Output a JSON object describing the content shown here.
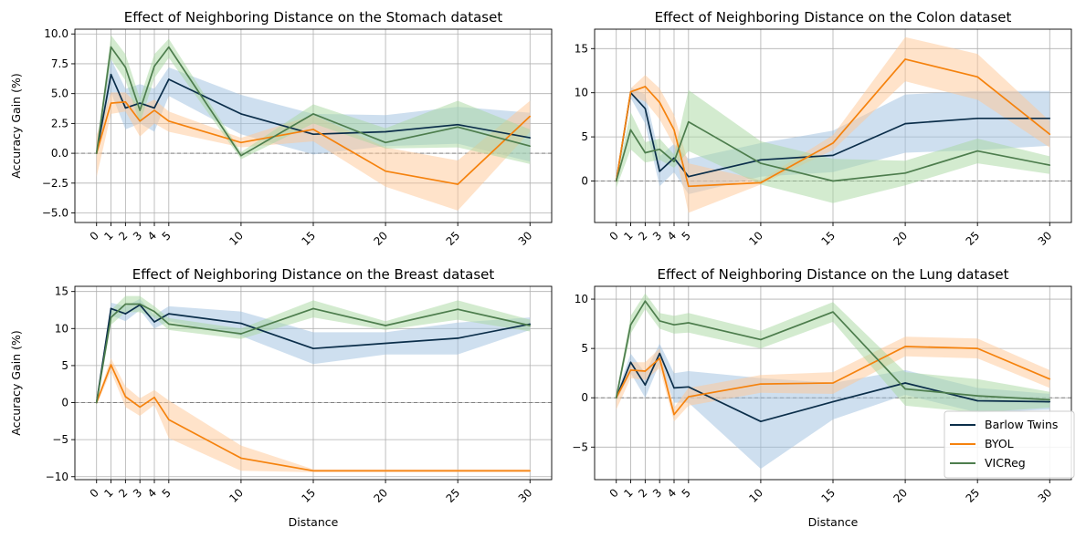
{
  "figure": {
    "legend_title": "",
    "legend_location": "lower right of Lung panel"
  },
  "chart_data": [
    {
      "type": "line",
      "title": "Effect of Neighboring Distance on the Stomach dataset",
      "xlabel": "",
      "ylabel": "Accuracy Gain (%)",
      "xlim": [
        -1.5,
        31.5
      ],
      "ylim": [
        -5.8,
        10.4
      ],
      "xticks": [
        0,
        1,
        2,
        3,
        4,
        5,
        10,
        15,
        20,
        25,
        30
      ],
      "yticks": [
        -5.0,
        -2.5,
        0.0,
        2.5,
        5.0,
        7.5,
        10.0
      ],
      "ytick_labels": [
        "−5.0",
        "−2.5",
        "0.0",
        "2.5",
        "5.0",
        "7.5",
        "10.0"
      ],
      "x": [
        0,
        1,
        2,
        3,
        4,
        5,
        10,
        15,
        20,
        25,
        30
      ],
      "series": [
        {
          "name": "Barlow Twins",
          "values": [
            0,
            6.6,
            3.8,
            4.2,
            3.8,
            6.2,
            3.3,
            1.6,
            1.8,
            2.4,
            1.3
          ],
          "lower": [
            -0.3,
            5.1,
            2.0,
            2.5,
            1.8,
            4.8,
            1.6,
            -0.1,
            0.6,
            0.8,
            -0.7
          ],
          "upper": [
            0.3,
            7.9,
            5.4,
            5.8,
            5.4,
            7.2,
            4.9,
            3.3,
            3.2,
            3.9,
            3.4
          ]
        },
        {
          "name": "BYOL",
          "values": [
            0,
            4.2,
            4.3,
            2.7,
            3.6,
            2.7,
            0.9,
            2.0,
            -1.5,
            -2.6,
            3.1
          ],
          "lower": [
            -2.0,
            3.3,
            3.5,
            1.4,
            2.5,
            1.8,
            0.5,
            1.0,
            -2.8,
            -4.8,
            1.8
          ],
          "upper": [
            1.5,
            5.1,
            5.1,
            3.9,
            4.5,
            3.5,
            1.3,
            3.2,
            0.5,
            -0.6,
            4.4
          ]
        },
        {
          "name": "VICReg",
          "values": [
            0,
            8.9,
            7.2,
            3.6,
            7.3,
            8.9,
            -0.2,
            3.3,
            0.9,
            2.2,
            0.6
          ],
          "lower": [
            -0.3,
            7.9,
            6.1,
            2.5,
            6.3,
            8.0,
            -0.5,
            2.5,
            0.4,
            0.5,
            -0.9
          ],
          "upper": [
            0.3,
            9.9,
            8.3,
            4.6,
            8.3,
            9.6,
            0.1,
            4.1,
            2.1,
            4.4,
            2.0
          ]
        }
      ]
    },
    {
      "type": "line",
      "title": "Effect of Neighboring Distance on the Colon dataset",
      "xlabel": "",
      "ylabel": "",
      "xlim": [
        -1.5,
        31.5
      ],
      "ylim": [
        -4.7,
        17.2
      ],
      "xticks": [
        0,
        1,
        2,
        3,
        4,
        5,
        10,
        15,
        20,
        25,
        30
      ],
      "yticks": [
        0,
        5,
        10,
        15
      ],
      "ytick_labels": [
        "0",
        "5",
        "10",
        "15"
      ],
      "x": [
        0,
        1,
        2,
        3,
        4,
        5,
        10,
        15,
        20,
        25,
        30
      ],
      "series": [
        {
          "name": "Barlow Twins",
          "values": [
            0,
            10.0,
            8.2,
            1.1,
            2.6,
            0.5,
            2.4,
            2.9,
            6.5,
            7.1,
            7.1
          ],
          "lower": [
            -0.3,
            9.4,
            6.5,
            -0.6,
            1.0,
            -1.5,
            0.5,
            1.0,
            3.2,
            3.5,
            4.0
          ],
          "upper": [
            0.3,
            10.6,
            9.8,
            2.8,
            4.2,
            2.5,
            4.3,
            5.7,
            9.8,
            10.2,
            10.2
          ]
        },
        {
          "name": "BYOL",
          "values": [
            0,
            10.1,
            10.7,
            8.9,
            5.8,
            -0.6,
            -0.2,
            4.3,
            13.8,
            11.8,
            5.3
          ],
          "lower": [
            -0.3,
            9.7,
            9.0,
            7.0,
            4.0,
            -3.6,
            -0.4,
            3.5,
            11.3,
            9.2,
            3.8
          ],
          "upper": [
            0.3,
            10.5,
            12.0,
            10.5,
            7.5,
            2.0,
            0.1,
            5.2,
            16.3,
            14.4,
            6.8
          ]
        },
        {
          "name": "VICReg",
          "values": [
            0,
            5.8,
            3.2,
            3.6,
            2.2,
            6.7,
            2.0,
            0.0,
            0.9,
            3.4,
            1.8
          ],
          "lower": [
            -0.8,
            3.6,
            2.1,
            2.4,
            1.5,
            3.4,
            -0.4,
            -2.5,
            -0.5,
            2.0,
            0.8
          ],
          "upper": [
            0.3,
            7.8,
            4.4,
            4.8,
            3.0,
            10.3,
            4.5,
            2.5,
            2.3,
            4.8,
            2.8
          ]
        }
      ]
    },
    {
      "type": "line",
      "title": "Effect of Neighboring Distance on the Breast dataset",
      "xlabel": "Distance",
      "ylabel": "Accuracy Gain (%)",
      "xlim": [
        -1.5,
        31.5
      ],
      "ylim": [
        -10.4,
        15.7
      ],
      "xticks": [
        0,
        1,
        2,
        3,
        4,
        5,
        10,
        15,
        20,
        25,
        30
      ],
      "yticks": [
        -10,
        -5,
        0,
        5,
        10,
        15
      ],
      "ytick_labels": [
        "−10",
        "−5",
        "0",
        "5",
        "10",
        "15"
      ],
      "x": [
        0,
        1,
        2,
        3,
        4,
        5,
        10,
        15,
        20,
        25,
        30
      ],
      "series": [
        {
          "name": "Barlow Twins",
          "values": [
            0,
            12.7,
            12.0,
            13.2,
            10.9,
            12.0,
            10.7,
            7.3,
            8.0,
            8.7,
            10.6
          ],
          "lower": [
            -0.3,
            11.8,
            11.0,
            12.5,
            10.0,
            11.0,
            9.0,
            5.2,
            6.5,
            6.5,
            9.8
          ],
          "upper": [
            0.3,
            13.5,
            13.0,
            14.0,
            11.8,
            13.0,
            12.3,
            9.5,
            9.5,
            10.8,
            11.5
          ]
        },
        {
          "name": "BYOL",
          "values": [
            0,
            5.1,
            0.8,
            -0.6,
            0.7,
            -2.3,
            -7.5,
            -9.2,
            -9.2,
            -9.2,
            -9.2
          ],
          "lower": [
            -0.3,
            4.2,
            -0.6,
            -1.8,
            -0.3,
            -4.8,
            -9.2,
            -9.4,
            -9.4,
            -9.4,
            -9.4
          ],
          "upper": [
            0.3,
            6.0,
            2.2,
            0.6,
            1.7,
            0.3,
            -5.8,
            -9.0,
            -9.0,
            -9.0,
            -9.0
          ]
        },
        {
          "name": "VICReg",
          "values": [
            0,
            11.5,
            13.3,
            13.3,
            12.3,
            10.6,
            9.3,
            12.7,
            10.4,
            12.6,
            10.4
          ],
          "lower": [
            -0.3,
            10.5,
            12.2,
            12.2,
            11.5,
            9.8,
            8.6,
            11.5,
            9.8,
            11.2,
            9.6
          ],
          "upper": [
            0.3,
            12.5,
            14.4,
            14.4,
            13.0,
            11.4,
            10.0,
            13.8,
            11.0,
            13.8,
            11.2
          ]
        }
      ]
    },
    {
      "type": "line",
      "title": "Effect of Neighboring Distance on the Lung dataset",
      "xlabel": "Distance",
      "ylabel": "",
      "xlim": [
        -1.5,
        31.5
      ],
      "ylim": [
        -8.3,
        11.3
      ],
      "xticks": [
        0,
        1,
        2,
        3,
        4,
        5,
        10,
        15,
        20,
        25,
        30
      ],
      "yticks": [
        -5,
        0,
        5,
        10
      ],
      "ytick_labels": [
        "−5",
        "0",
        "5",
        "10"
      ],
      "x": [
        0,
        1,
        2,
        3,
        4,
        5,
        10,
        15,
        20,
        25,
        30
      ],
      "series": [
        {
          "name": "Barlow Twins",
          "values": [
            0,
            3.6,
            1.3,
            4.5,
            1.0,
            1.1,
            -2.4,
            -0.4,
            1.5,
            -0.3,
            -0.4
          ],
          "lower": [
            -0.3,
            2.5,
            0.0,
            3.5,
            -0.5,
            -0.5,
            -7.2,
            -2.2,
            0.3,
            -1.5,
            -1.2
          ],
          "upper": [
            0.3,
            4.5,
            2.5,
            5.5,
            2.5,
            2.7,
            2.0,
            1.5,
            2.8,
            1.0,
            0.4
          ]
        },
        {
          "name": "BYOL",
          "values": [
            0,
            2.8,
            2.7,
            4.0,
            -1.7,
            0.1,
            1.4,
            1.5,
            5.2,
            5.0,
            1.9
          ],
          "lower": [
            -1.2,
            2.0,
            1.8,
            3.0,
            -2.4,
            -0.8,
            0.5,
            0.4,
            4.2,
            4.0,
            1.0
          ],
          "upper": [
            0.3,
            3.6,
            3.6,
            5.0,
            -1.0,
            1.0,
            2.3,
            2.6,
            6.2,
            6.0,
            2.8
          ]
        },
        {
          "name": "VICReg",
          "values": [
            0,
            7.4,
            9.8,
            7.8,
            7.4,
            7.6,
            5.9,
            8.7,
            0.9,
            0.2,
            -0.2
          ],
          "lower": [
            -0.3,
            6.5,
            9.0,
            7.0,
            6.5,
            6.6,
            5.0,
            7.7,
            -0.8,
            -1.5,
            -1.0
          ],
          "upper": [
            0.3,
            8.3,
            10.6,
            8.6,
            8.3,
            8.6,
            6.8,
            9.7,
            2.6,
            1.9,
            0.6
          ]
        }
      ]
    }
  ],
  "legend": {
    "entries": [
      "Barlow Twins",
      "BYOL",
      "VICReg"
    ],
    "colors": [
      "#0b2e4a",
      "#f5820d",
      "#4d7d4d"
    ],
    "band_colors": [
      "#9ec0e0",
      "#ffc796",
      "#a8d8a0"
    ]
  }
}
